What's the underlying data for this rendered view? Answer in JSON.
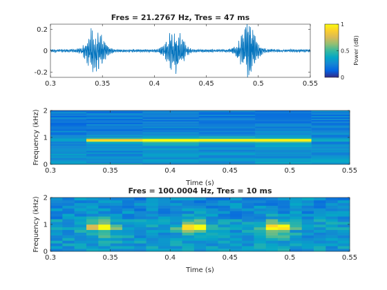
{
  "chart_data": [
    {
      "type": "line",
      "title": "Fres = 21.2767 Hz, Tres = 47 ms",
      "xlabel": "",
      "ylabel": "",
      "xlim": [
        0.3,
        0.55
      ],
      "ylim": [
        -0.25,
        0.25
      ],
      "x_ticks": [
        "0.3",
        "0.35",
        "0.4",
        "0.45",
        "0.5",
        "0.55"
      ],
      "y_ticks": [
        "-0.2",
        "0",
        "0.2"
      ],
      "color": "#0072BD",
      "bursts": [
        {
          "center": 0.343,
          "peak_amplitude": 0.25,
          "width": 0.009
        },
        {
          "center": 0.42,
          "peak_amplitude": 0.22,
          "width": 0.009
        },
        {
          "center": 0.49,
          "peak_amplitude": 0.25,
          "width": 0.009
        }
      ],
      "noise_amplitude": 0.015,
      "colorbar": {
        "label": "Power (dB)",
        "ticks": [
          "0",
          "0.5",
          "1"
        ],
        "range": [
          0,
          1
        ]
      }
    },
    {
      "type": "heatmap",
      "title": "",
      "xlabel": "Time (s)",
      "ylabel": "Frequency (kHz)",
      "xlim": [
        0.3,
        0.55
      ],
      "ylim": [
        0,
        2
      ],
      "x_ticks": [
        "0.3",
        "0.35",
        "0.4",
        "0.45",
        "0.5",
        "0.55"
      ],
      "y_ticks": [
        "0",
        "1",
        "2"
      ],
      "freq_resolution_hz": 21.2767,
      "time_resolution_ms": 47,
      "time_bins": [
        0.3,
        0.33,
        0.377,
        0.424,
        0.471,
        0.518,
        0.55
      ],
      "tone_frequency_khz": 0.9,
      "tone_intensity_by_column": [
        0.1,
        0.85,
        1.0,
        0.95,
        0.9,
        0.1
      ]
    },
    {
      "type": "heatmap",
      "title": "Fres = 100.0004 Hz, Tres = 10 ms",
      "xlabel": "Time (s)",
      "ylabel": "Frequency (kHz)",
      "xlim": [
        0.3,
        0.55
      ],
      "ylim": [
        0,
        2
      ],
      "x_ticks": [
        "0.3",
        "0.35",
        "0.4",
        "0.45",
        "0.5",
        "0.55"
      ],
      "y_ticks": [
        "0",
        "1",
        "2"
      ],
      "freq_resolution_hz": 100.0004,
      "time_resolution_ms": 10,
      "tone_frequency_khz": 0.9,
      "burst_centers": [
        0.343,
        0.42,
        0.49
      ]
    }
  ]
}
